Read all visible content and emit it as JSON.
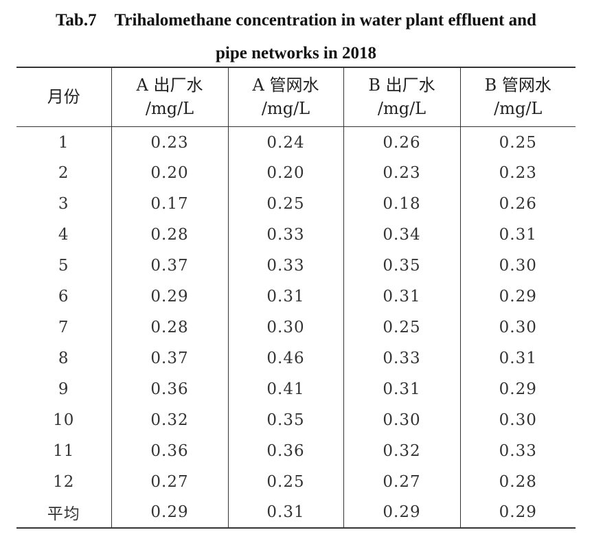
{
  "caption": {
    "table_number": "Tab.7",
    "title_line1": "Trihalomethane concentration in water plant effluent and",
    "title_line2": "pipe networks in 2018"
  },
  "table": {
    "columns": [
      {
        "name": "月份",
        "unit": ""
      },
      {
        "name": "A 出厂水",
        "unit": "/mg/L"
      },
      {
        "name": "A 管网水",
        "unit": "/mg/L"
      },
      {
        "name": "B 出厂水",
        "unit": "/mg/L"
      },
      {
        "name": "B 管网水",
        "unit": "/mg/L"
      }
    ],
    "rows": [
      [
        "1",
        "0.23",
        "0.24",
        "0.26",
        "0.25"
      ],
      [
        "2",
        "0.20",
        "0.20",
        "0.23",
        "0.23"
      ],
      [
        "3",
        "0.17",
        "0.25",
        "0.18",
        "0.26"
      ],
      [
        "4",
        "0.28",
        "0.33",
        "0.34",
        "0.31"
      ],
      [
        "5",
        "0.37",
        "0.33",
        "0.35",
        "0.30"
      ],
      [
        "6",
        "0.29",
        "0.31",
        "0.31",
        "0.29"
      ],
      [
        "7",
        "0.28",
        "0.30",
        "0.25",
        "0.30"
      ],
      [
        "8",
        "0.37",
        "0.46",
        "0.33",
        "0.31"
      ],
      [
        "9",
        "0.36",
        "0.41",
        "0.31",
        "0.29"
      ],
      [
        "10",
        "0.32",
        "0.35",
        "0.30",
        "0.30"
      ],
      [
        "11",
        "0.36",
        "0.36",
        "0.32",
        "0.33"
      ],
      [
        "12",
        "0.27",
        "0.25",
        "0.27",
        "0.28"
      ],
      [
        "平均",
        "0.29",
        "0.31",
        "0.29",
        "0.29"
      ]
    ]
  }
}
